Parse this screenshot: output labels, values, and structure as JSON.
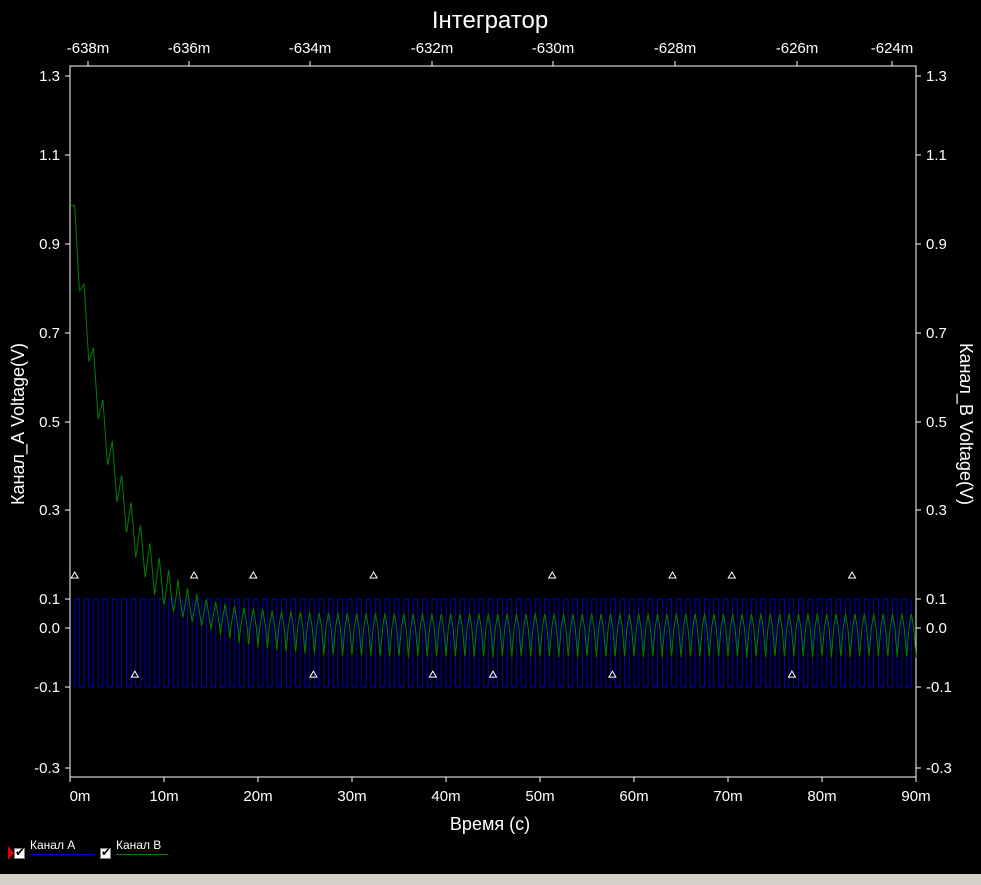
{
  "chart_data": {
    "type": "line",
    "title": "Інтегратор",
    "xlabel": "Время (с)",
    "ylabel_left": "Канал_А Voltage(V)",
    "ylabel_right": "Канал_В Voltage(V)",
    "x_bottom_ticks": [
      "0m",
      "10m",
      "20m",
      "30m",
      "40m",
      "50m",
      "60m",
      "70m",
      "80m",
      "90m"
    ],
    "x_top_ticks": [
      "-638m",
      "-636m",
      "-634m",
      "-632m",
      "-630m",
      "-628m",
      "-626m",
      "-624m"
    ],
    "y_ticks": [
      "1.3",
      "1.1",
      "0.9",
      "0.7",
      "0.5",
      "0.3",
      "0.1",
      "0.0",
      "-0.1",
      "-0.3"
    ],
    "xlim": [
      0,
      0.09
    ],
    "ylim": [
      -0.33,
      1.33
    ],
    "grid": false,
    "background": "#000000",
    "series": [
      {
        "name": "Канал А",
        "color": "#0000c8",
        "kind": "square",
        "high": 0.1,
        "low": -0.1,
        "period": 0.001,
        "x_start": 0.0005,
        "x_end": 0.0895
      },
      {
        "name": "Канал В",
        "color": "#008000",
        "kind": "triangle-decay",
        "start": 1.04,
        "final_offset": 0.0,
        "tau": 0.0048,
        "ripple": 0.05,
        "period": 0.001,
        "x_start": 0.0,
        "x_end": 0.09
      }
    ],
    "markers": {
      "symbol": "triangle",
      "color": "#ffffff",
      "upper_level": 0.1,
      "lower_level": -0.1,
      "upper_x": [
        0.0005,
        0.0132,
        0.0195,
        0.0323,
        0.0513,
        0.0641,
        0.0704,
        0.0832
      ],
      "lower_x": [
        0.0069,
        0.0259,
        0.0386,
        0.045,
        0.0577,
        0.0768
      ]
    }
  },
  "legend": {
    "items": [
      {
        "label": "Канал А",
        "color": "#0000c8"
      },
      {
        "label": "Канал В",
        "color": "#008000"
      }
    ]
  }
}
